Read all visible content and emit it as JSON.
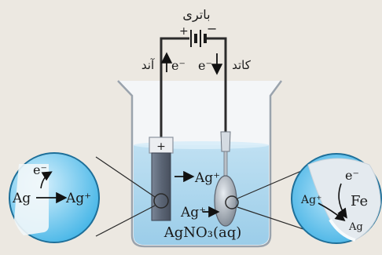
{
  "battery": {
    "label": "باتری",
    "plus": "+",
    "minus": "−"
  },
  "anode": {
    "label": "آند",
    "electron": "e⁻"
  },
  "cathode": {
    "label": "کاتد",
    "electron": "e⁻"
  },
  "anode_plate": {
    "plus": "+"
  },
  "beaker": {
    "ion_upper": "Ag⁺",
    "ion_lower": "Ag⁺",
    "solution": "AgNO₃(aq)"
  },
  "left_inset": {
    "electron": "e⁻",
    "metal": "Ag",
    "ion": "Ag⁺"
  },
  "right_inset": {
    "electron": "e⁻",
    "metal": "Fe",
    "ion": "Ag⁺",
    "deposit": "Ag"
  }
}
